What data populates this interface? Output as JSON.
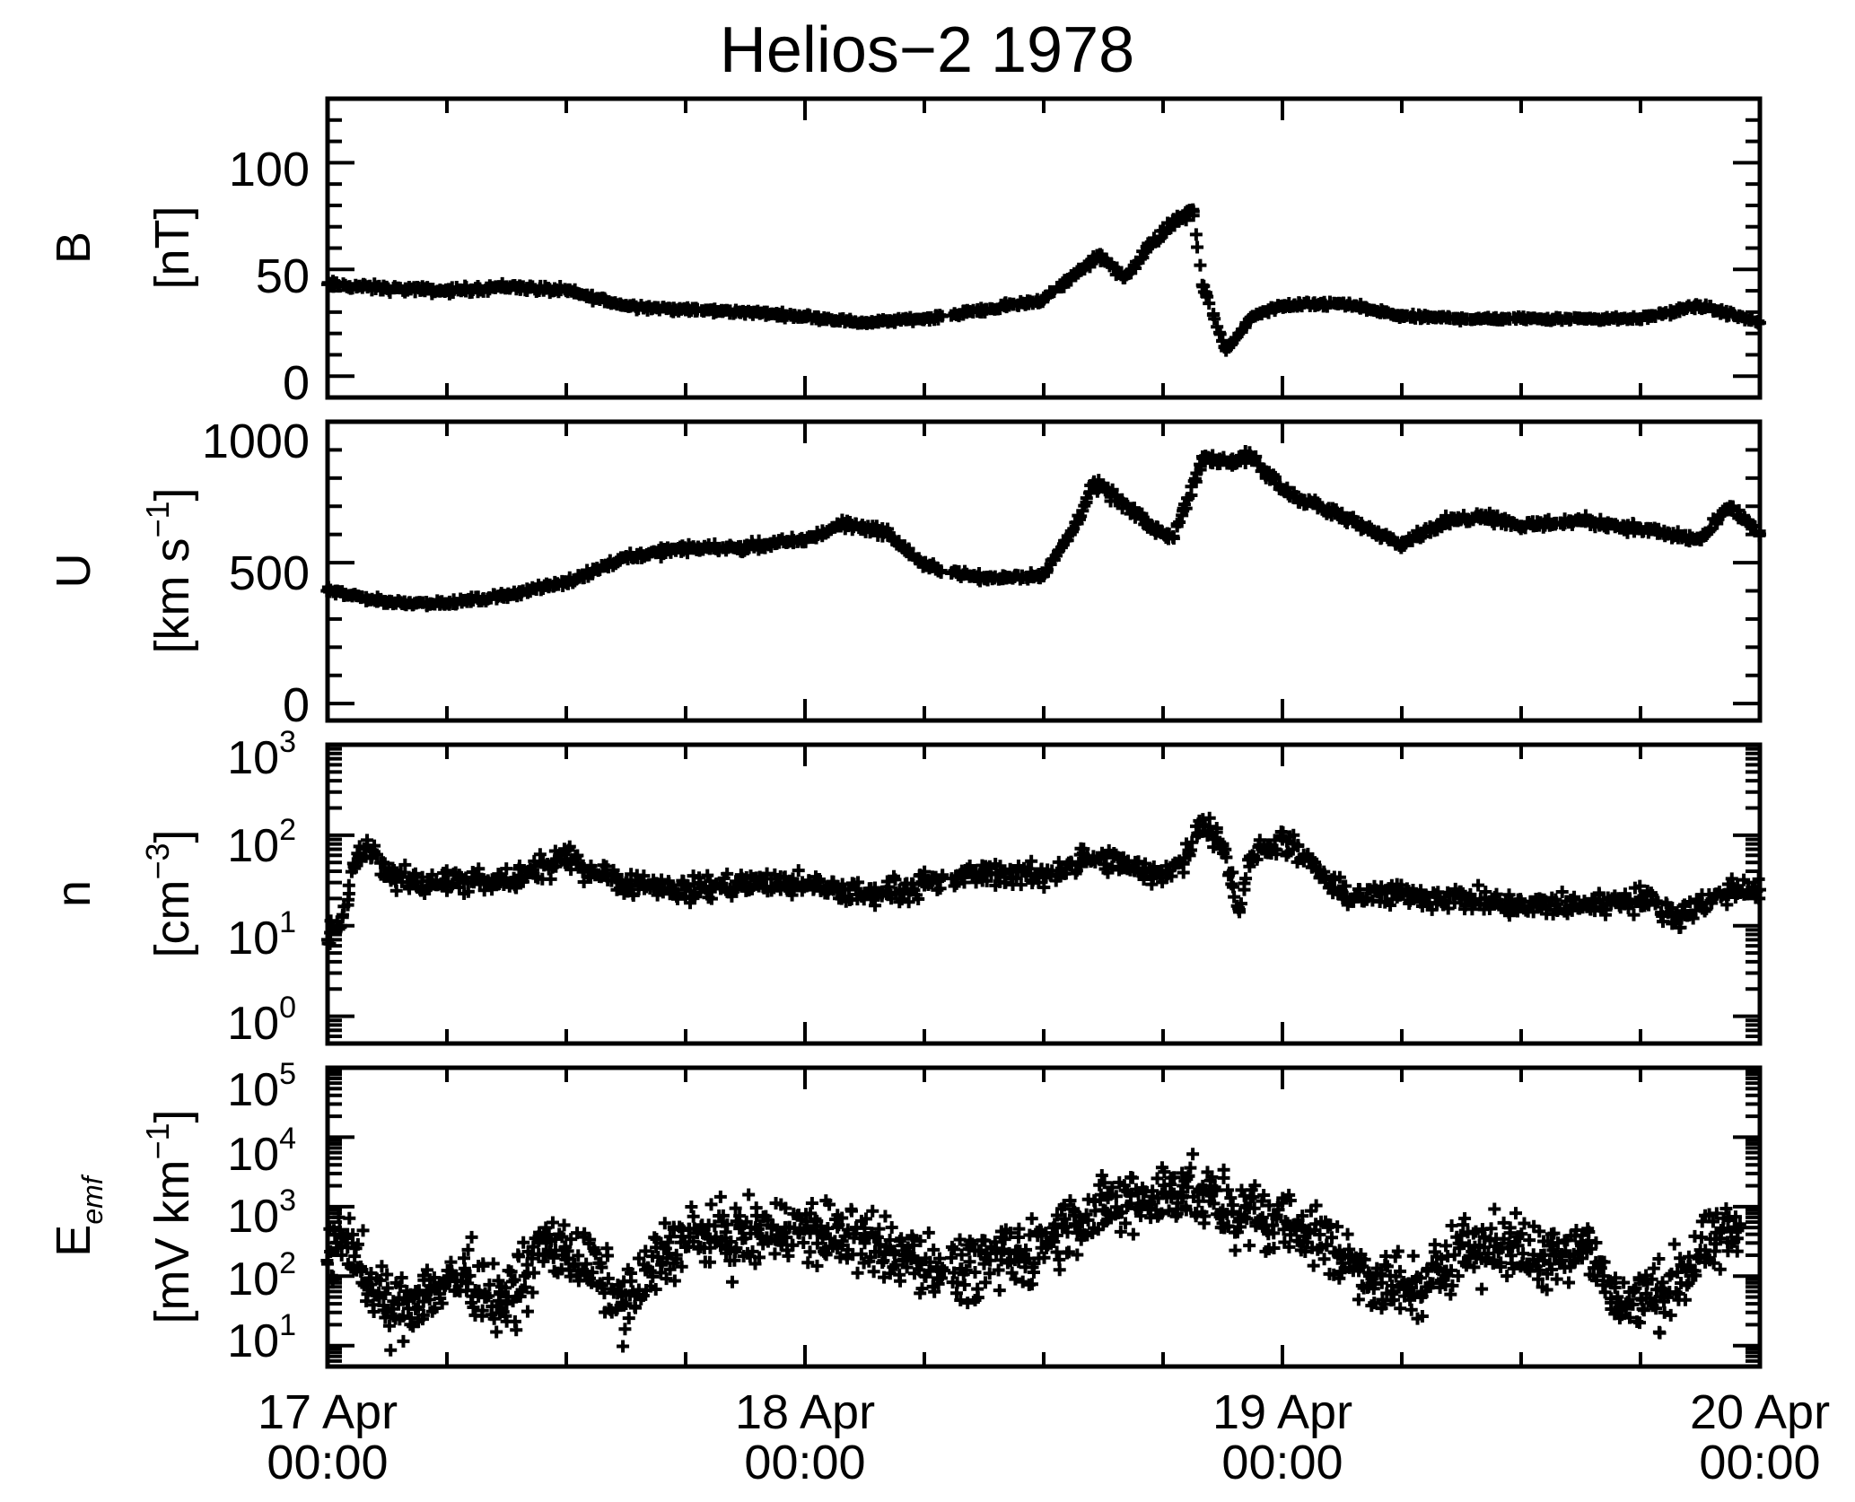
{
  "figure": {
    "title": "Helios−2 1978"
  },
  "x_axis": {
    "type": "time",
    "range": [
      "1978-04-17T00:00",
      "1978-04-20T00:00"
    ],
    "ticks": [
      {
        "value": "1978-04-17T00:00",
        "line1": "17 Apr",
        "line2": "00:00"
      },
      {
        "value": "1978-04-18T00:00",
        "line1": "18 Apr",
        "line2": "00:00"
      },
      {
        "value": "1978-04-19T00:00",
        "line1": "19 Apr",
        "line2": "00:00"
      },
      {
        "value": "1978-04-20T00:00",
        "line1": "20 Apr",
        "line2": "00:00"
      }
    ]
  },
  "panels": {
    "B": {
      "ylabel_main": "B",
      "ylabel_unit": "[nT]",
      "tick_labels": [
        "0",
        "50",
        "100"
      ]
    },
    "U": {
      "ylabel_main": "U",
      "ylabel_unit_pre": "[km s",
      "ylabel_unit_sup": "−1",
      "ylabel_unit_post": "]",
      "tick_labels": [
        "0",
        "500",
        "1000"
      ]
    },
    "n": {
      "ylabel_main": "n",
      "ylabel_unit_pre": "[cm",
      "ylabel_unit_sup": "−3",
      "ylabel_unit_post": "]",
      "tick_labels": [
        {
          "base": "10",
          "exp": "0"
        },
        {
          "base": "10",
          "exp": "1"
        },
        {
          "base": "10",
          "exp": "2"
        },
        {
          "base": "10",
          "exp": "3"
        }
      ]
    },
    "E": {
      "ylabel_main": "E",
      "ylabel_sub": "emf",
      "ylabel_unit_pre": "[mV km",
      "ylabel_unit_sup": "−1",
      "ylabel_unit_post": "]",
      "tick_labels": [
        {
          "base": "10",
          "exp": "1"
        },
        {
          "base": "10",
          "exp": "2"
        },
        {
          "base": "10",
          "exp": "3"
        },
        {
          "base": "10",
          "exp": "4"
        },
        {
          "base": "10",
          "exp": "5"
        }
      ]
    }
  },
  "chart_data": [
    {
      "type": "scatter",
      "title": "Helios−2 1978",
      "ylabel": "B [nT]",
      "ylim": [
        -10,
        130
      ],
      "yscale": "linear",
      "marker": "+",
      "x_unit": "date (1978)",
      "x": [
        "04-17 00:00",
        "04-17 03:00",
        "04-17 06:00",
        "04-17 09:00",
        "04-17 12:00",
        "04-17 15:00",
        "04-17 18:00",
        "04-17 21:00",
        "04-18 00:00",
        "04-18 03:00",
        "04-18 06:00",
        "04-18 09:00",
        "04-18 12:00",
        "04-18 14:10",
        "04-18 14:50",
        "04-18 16:00",
        "04-18 18:00",
        "04-18 19:30",
        "04-18 20:00",
        "04-18 21:10",
        "04-18 22:30",
        "04-19 00:00",
        "04-19 03:00",
        "04-19 06:00",
        "04-19 09:00",
        "04-19 12:00",
        "04-19 15:00",
        "04-19 18:00",
        "04-19 21:00",
        "04-20 00:00"
      ],
      "y": [
        43,
        41,
        40,
        42,
        40,
        33,
        31,
        30,
        28,
        25,
        27,
        31,
        36,
        52,
        57,
        46,
        68,
        78,
        42,
        12,
        28,
        33,
        34,
        28,
        27,
        27,
        27,
        27,
        33,
        25
      ]
    },
    {
      "type": "scatter",
      "ylabel": "U [km s⁻¹]",
      "ylim": [
        -60,
        1000
      ],
      "yscale": "linear",
      "marker": "+",
      "x_unit": "date (1978)",
      "x": [
        "04-17 00:00",
        "04-17 03:00",
        "04-17 06:00",
        "04-17 09:00",
        "04-17 12:00",
        "04-17 15:00",
        "04-17 18:00",
        "04-17 21:00",
        "04-18 00:00",
        "04-18 02:00",
        "04-18 04:00",
        "04-18 06:00",
        "04-18 09:00",
        "04-18 12:00",
        "04-18 13:30",
        "04-18 14:30",
        "04-18 16:00",
        "04-18 17:30",
        "04-18 18:30",
        "04-18 20:00",
        "04-18 21:30",
        "04-18 22:30",
        "04-19 00:00",
        "04-19 03:00",
        "04-19 06:00",
        "04-19 08:00",
        "04-19 10:00",
        "04-19 12:00",
        "04-19 15:00",
        "04-19 18:00",
        "04-19 21:00",
        "04-19 22:30",
        "04-20 00:00"
      ],
      "y": [
        400,
        360,
        355,
        385,
        430,
        520,
        550,
        555,
        580,
        640,
        610,
        490,
        445,
        455,
        620,
        780,
        710,
        620,
        590,
        870,
        860,
        870,
        760,
        660,
        570,
        640,
        670,
        630,
        650,
        620,
        580,
        700,
        600
      ]
    },
    {
      "type": "scatter",
      "ylabel": "n [cm⁻³]",
      "ylim": [
        0.5,
        1000
      ],
      "yscale": "log",
      "marker": "+",
      "x_unit": "date (1978)",
      "x": [
        "04-17 00:00",
        "04-17 00:40",
        "04-17 01:20",
        "04-17 02:00",
        "04-17 03:00",
        "04-17 06:00",
        "04-17 09:00",
        "04-17 12:00",
        "04-17 15:00",
        "04-17 18:00",
        "04-17 21:00",
        "04-18 00:00",
        "04-18 03:00",
        "04-18 06:00",
        "04-18 09:00",
        "04-18 12:00",
        "04-18 14:00",
        "04-18 16:00",
        "04-18 17:30",
        "04-18 19:00",
        "04-18 20:00",
        "04-18 21:00",
        "04-18 21:50",
        "04-18 22:30",
        "04-19 00:00",
        "04-19 03:00",
        "04-19 06:00",
        "04-19 09:00",
        "04-19 12:00",
        "04-19 15:00",
        "04-19 18:00",
        "04-19 20:00",
        "04-19 22:30",
        "04-20 00:00"
      ],
      "y": [
        7,
        10,
        45,
        75,
        35,
        30,
        30,
        55,
        30,
        25,
        30,
        28,
        22,
        28,
        38,
        35,
        55,
        48,
        35,
        50,
        150,
        80,
        15,
        60,
        90,
        22,
        22,
        20,
        16,
        17,
        20,
        13,
        25,
        25
      ]
    },
    {
      "type": "scatter",
      "ylabel": "E_emf [mV km⁻¹]",
      "ylim": [
        5,
        100000
      ],
      "yscale": "log",
      "marker": "+",
      "x_unit": "date (1978)",
      "x": [
        "04-17 00:00",
        "04-17 01:00",
        "04-17 02:00",
        "04-17 03:00",
        "04-17 05:00",
        "04-17 07:00",
        "04-17 09:00",
        "04-17 11:00",
        "04-17 13:00",
        "04-17 15:00",
        "04-17 17:00",
        "04-17 19:00",
        "04-17 21:00",
        "04-17 23:00",
        "04-18 01:00",
        "04-18 03:00",
        "04-18 05:00",
        "04-18 07:00",
        "04-18 09:00",
        "04-18 11:00",
        "04-18 13:00",
        "04-18 15:00",
        "04-18 17:00",
        "04-18 19:00",
        "04-18 21:00",
        "04-18 23:00",
        "04-19 01:00",
        "04-19 03:00",
        "04-19 05:00",
        "04-19 07:00",
        "04-19 09:00",
        "04-19 11:00",
        "04-19 13:00",
        "04-19 15:00",
        "04-19 17:00",
        "04-19 19:00",
        "04-19 21:00",
        "04-19 23:00"
      ],
      "y": [
        150,
        400,
        80,
        30,
        60,
        100,
        40,
        300,
        150,
        40,
        250,
        400,
        350,
        500,
        400,
        300,
        200,
        120,
        150,
        200,
        500,
        900,
        1200,
        2000,
        900,
        700,
        500,
        200,
        80,
        60,
        300,
        250,
        200,
        300,
        40,
        50,
        200,
        500
      ]
    }
  ]
}
